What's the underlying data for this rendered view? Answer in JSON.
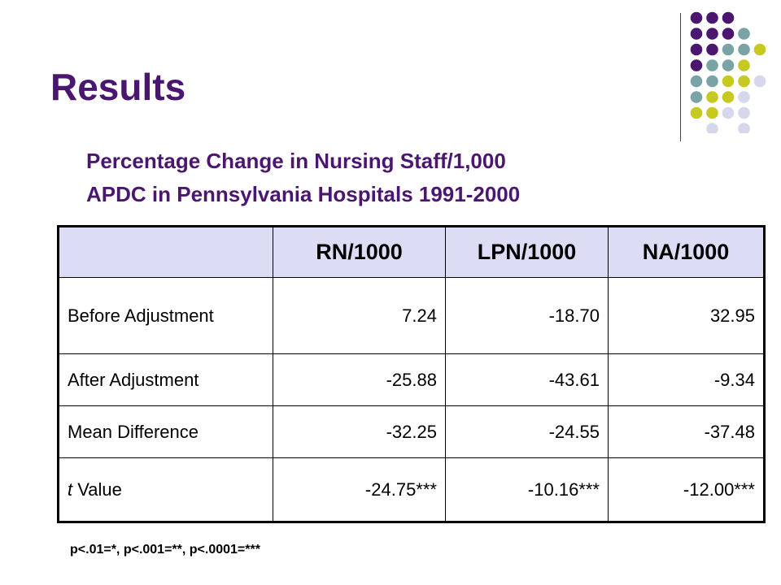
{
  "slide": {
    "title": "Results",
    "subtitle_line1": "Percentage Change in Nursing Staff/1,000",
    "subtitle_line2": "APDC in Pennsylvania Hospitals 1991-2000",
    "footnote": "p<.01=*, p<.001=**, p<.0001=***"
  },
  "colors": {
    "title": "#4b1670",
    "header_fill": "#dcdcf4",
    "dot_purple": "#4b1670",
    "dot_teal": "#7aa3a5",
    "dot_lime": "#c6c922",
    "dot_lavender": "#d6d6ec"
  },
  "decoration": {
    "dot_pattern": [
      [
        "purple",
        "purple",
        "purple",
        "",
        ""
      ],
      [
        "purple",
        "purple",
        "purple",
        "teal",
        ""
      ],
      [
        "purple",
        "purple",
        "teal",
        "teal",
        "lime"
      ],
      [
        "purple",
        "teal",
        "teal",
        "lime",
        ""
      ],
      [
        "teal",
        "teal",
        "lime",
        "lime",
        "lavender"
      ],
      [
        "teal",
        "lime",
        "lime",
        "lavender",
        ""
      ],
      [
        "lime",
        "lime",
        "lavender",
        "lavender",
        ""
      ],
      [
        "",
        "lavender",
        "",
        "lavender",
        ""
      ]
    ]
  },
  "table": {
    "columns": [
      "",
      "RN/1000",
      "LPN/1000",
      "NA/1000"
    ],
    "rows": [
      {
        "label": "Before Adjustment",
        "values": [
          "7.24",
          "-18.70",
          "32.95"
        ]
      },
      {
        "label": "After Adjustment",
        "values": [
          "-25.88",
          "-43.61",
          "-9.34"
        ]
      },
      {
        "label": "Mean Difference",
        "values": [
          "-32.25",
          "-24.55",
          "-37.48"
        ]
      },
      {
        "label_italic": "t",
        "label_rest": " Value",
        "values": [
          "-24.75***",
          "-10.16***",
          "-12.00***"
        ]
      }
    ]
  }
}
